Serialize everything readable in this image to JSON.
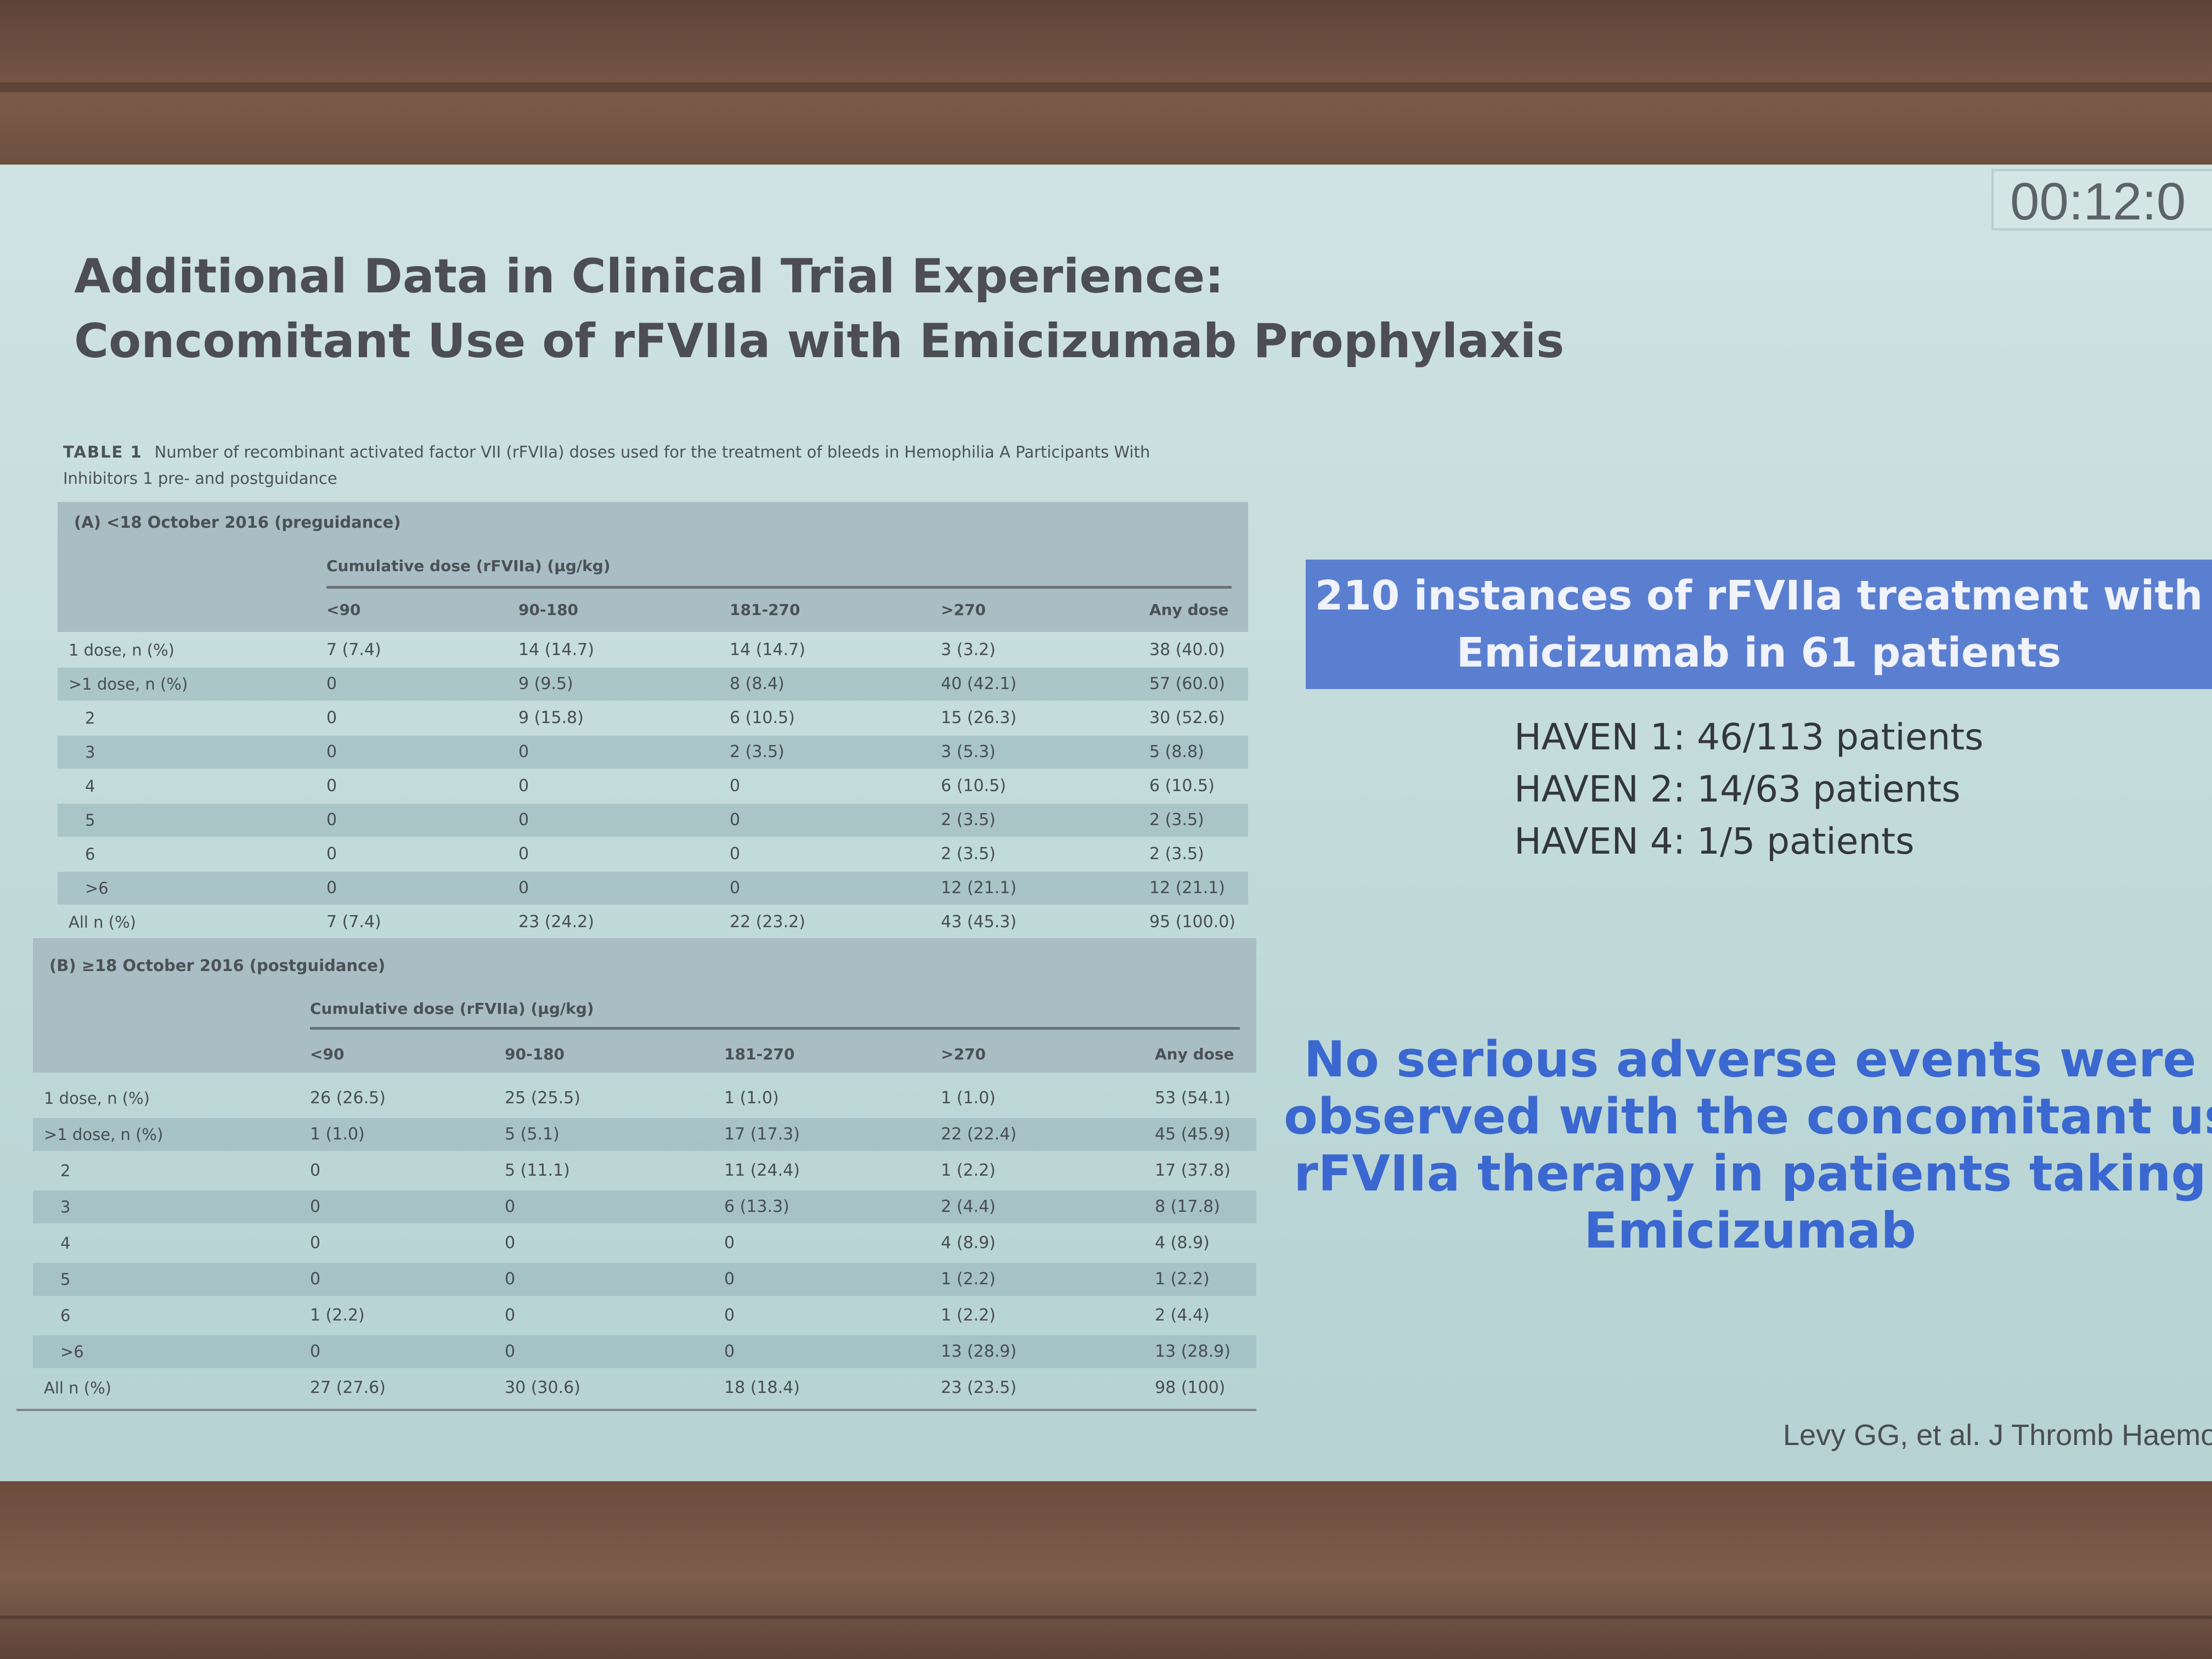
{
  "timer": "00:12:0",
  "title_lines": [
    "Additional Data in Clinical Trial Experience:",
    "Concomitant Use of rFVIIa with Emicizumab Prophylaxis"
  ],
  "table": {
    "caption_label": "TABLE 1",
    "caption_text": "Number of recombinant activated factor VII (rFVIIa) doses used for the treatment of bleeds in Hemophilia A Participants With",
    "caption_text2": "Inhibitors 1 pre- and postguidance",
    "sections": [
      {
        "title": "(A) <18 October 2016 (preguidance)",
        "cumulative_label": "Cumulative dose (rFVIIa) (µg/kg)",
        "columns": [
          "<90",
          "90-180",
          "181-270",
          ">270",
          "Any dose"
        ],
        "rows": [
          [
            "1 dose, n (%)",
            "7 (7.4)",
            "14 (14.7)",
            "14 (14.7)",
            "3 (3.2)",
            "38 (40.0)"
          ],
          [
            ">1 dose, n (%)",
            "0",
            "9 (9.5)",
            "8 (8.4)",
            "40 (42.1)",
            "57 (60.0)"
          ],
          [
            "2",
            "0",
            "9 (15.8)",
            "6 (10.5)",
            "15 (26.3)",
            "30 (52.6)"
          ],
          [
            "3",
            "0",
            "0",
            "2 (3.5)",
            "3 (5.3)",
            "5 (8.8)"
          ],
          [
            "4",
            "0",
            "0",
            "0",
            "6 (10.5)",
            "6 (10.5)"
          ],
          [
            "5",
            "0",
            "0",
            "0",
            "2 (3.5)",
            "2 (3.5)"
          ],
          [
            "6",
            "0",
            "0",
            "0",
            "2 (3.5)",
            "2 (3.5)"
          ],
          [
            ">6",
            "0",
            "0",
            "0",
            "12 (21.1)",
            "12 (21.1)"
          ],
          [
            "All n (%)",
            "7 (7.4)",
            "23 (24.2)",
            "22 (23.2)",
            "43 (45.3)",
            "95 (100.0)"
          ]
        ]
      },
      {
        "title": "(B) ≥18 October 2016 (postguidance)",
        "cumulative_label": "Cumulative dose (rFVIIa) (µg/kg)",
        "columns": [
          "<90",
          "90-180",
          "181-270",
          ">270",
          "Any dose"
        ],
        "rows": [
          [
            "1 dose, n (%)",
            "26 (26.5)",
            "25 (25.5)",
            "1 (1.0)",
            "1 (1.0)",
            "53 (54.1)"
          ],
          [
            ">1 dose, n (%)",
            "1 (1.0)",
            "5 (5.1)",
            "17 (17.3)",
            "22 (22.4)",
            "45 (45.9)"
          ],
          [
            "2",
            "0",
            "5 (11.1)",
            "11 (24.4)",
            "1 (2.2)",
            "17 (37.8)"
          ],
          [
            "3",
            "0",
            "0",
            "6 (13.3)",
            "2 (4.4)",
            "8 (17.8)"
          ],
          [
            "4",
            "0",
            "0",
            "0",
            "4 (8.9)",
            "4 (8.9)"
          ],
          [
            "5",
            "0",
            "0",
            "0",
            "1 (2.2)",
            "1 (2.2)"
          ],
          [
            "6",
            "1 (2.2)",
            "0",
            "0",
            "1 (2.2)",
            "2 (4.4)"
          ],
          [
            ">6",
            "0",
            "0",
            "0",
            "13 (28.9)",
            "13 (28.9)"
          ],
          [
            "All n (%)",
            "27 (27.6)",
            "30 (30.6)",
            "18 (18.4)",
            "23 (23.5)",
            "98 (100)"
          ]
        ]
      }
    ]
  },
  "banner_lines": [
    "210 instances of rFVIIa treatment with",
    "Emicizumab in 61 patients"
  ],
  "haven_lines": [
    "HAVEN 1: 46/113 patients",
    "HAVEN 2: 14/63 patients",
    "HAVEN 4: 1/5 patients"
  ],
  "no_sae_lines": [
    "No serious adverse events were",
    "observed with the concomitant use",
    "rFVIIa therapy in patients taking",
    "Emicizumab"
  ],
  "reference": "Levy GG, et al. J Thromb Haemo",
  "colors": {
    "banner": "#5b7fd0",
    "highlight_text": "#3a68d0",
    "screen": "#c3dcdb"
  }
}
